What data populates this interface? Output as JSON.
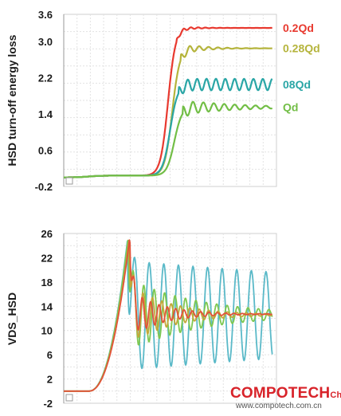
{
  "chart_data": [
    {
      "type": "line",
      "title": "",
      "xlabel": "",
      "ylabel": "HSD turn-off energy loss",
      "ylim": [
        -0.2,
        3.6
      ],
      "yticks": [
        "3.6",
        "3.0",
        "2.2",
        "1.4",
        "0.6",
        "-0.2"
      ],
      "ytick_values": [
        3.6,
        3.0,
        2.2,
        1.4,
        0.6,
        -0.2
      ],
      "grid": true,
      "legend": "right",
      "series": [
        {
          "name": "0.2Qd",
          "color": "#e8392f",
          "final": 3.3,
          "rise_center": 0.5,
          "ringing_amp": 0.05,
          "ringing_period": 0.035,
          "ringing_decay": 0.08
        },
        {
          "name": "0.28Qd",
          "color": "#b5b43c",
          "final": 2.85,
          "rise_center": 0.52,
          "ringing_amp": 0.12,
          "ringing_period": 0.045,
          "ringing_decay": 0.1
        },
        {
          "name": "08Qd",
          "color": "#2aa6a6",
          "final": 2.05,
          "rise_center": 0.51,
          "ringing_amp": 0.13,
          "ringing_period": 0.045,
          "ringing_decay": 10
        },
        {
          "name": "Qd",
          "color": "#72be46",
          "final": 1.55,
          "rise_center": 0.53,
          "ringing_amp": 0.16,
          "ringing_period": 0.05,
          "ringing_decay": 0.25
        }
      ],
      "baseline": 0.0
    },
    {
      "type": "line",
      "title": "",
      "xlabel": "",
      "ylabel": "VDS_HSD",
      "ylim": [
        -2,
        26
      ],
      "yticks": [
        "26",
        "22",
        "18",
        "14",
        "10",
        "6",
        "2",
        "-2"
      ],
      "ytick_values": [
        26,
        22,
        18,
        14,
        10,
        6,
        2,
        -2
      ],
      "grid": true,
      "series": [
        {
          "color": "#5ab9c8",
          "final": 12.5,
          "peak": 24.7,
          "ringing_amp": 9.0,
          "ringing_period": 0.07,
          "ringing_decay": 3.0
        },
        {
          "color": "#7ec850",
          "final": 12.6,
          "peak": 25.3,
          "ringing_amp": 6.0,
          "ringing_period": 0.05,
          "ringing_decay": 0.35
        },
        {
          "color": "#c4a83a",
          "final": 12.6,
          "peak": 25.0,
          "ringing_amp": 5.0,
          "ringing_period": 0.045,
          "ringing_decay": 0.2
        },
        {
          "color": "#e2523a",
          "final": 12.7,
          "peak": 25.5,
          "ringing_amp": 4.0,
          "ringing_period": 0.04,
          "ringing_decay": 0.15
        }
      ],
      "baseline": 0.0
    }
  ],
  "watermark": {
    "brand": "COMPOTECH",
    "region": "China",
    "url": "www.compotech.com.cn"
  }
}
